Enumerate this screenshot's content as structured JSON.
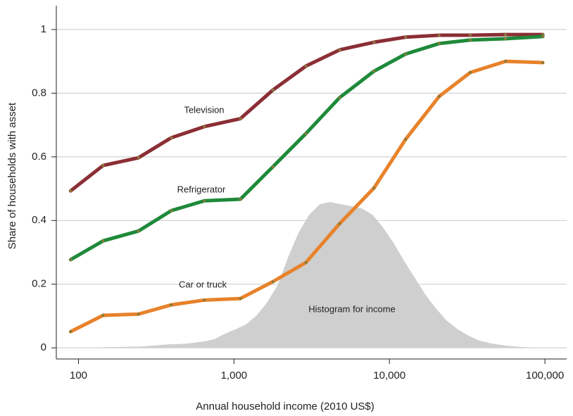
{
  "chart_data": {
    "type": "line",
    "xlabel": "Annual household income (2010 US$)",
    "ylabel": "Share of households with asset",
    "xscale": "log",
    "xlim": [
      72,
      138000
    ],
    "ylim": [
      -0.035,
      1.075
    ],
    "xticks": [
      100,
      {
        "value": 1000,
        "label": "1,000"
      },
      {
        "value": 10000,
        "label": "10,000"
      },
      {
        "value": 100000,
        "label": "100,000"
      }
    ],
    "yticks": [
      0,
      0.2,
      0.4,
      0.6,
      0.8,
      1
    ],
    "grid": true,
    "x": [
      89,
      144,
      243,
      395,
      645,
      1100,
      1780,
      2900,
      4780,
      7950,
      12700,
      20900,
      33100,
      55800,
      96900
    ],
    "series": [
      {
        "name": "Television",
        "color": "#8b2e35",
        "values": [
          0.493,
          0.573,
          0.597,
          0.66,
          0.695,
          0.72,
          0.81,
          0.885,
          0.936,
          0.96,
          0.976,
          0.982,
          0.982,
          0.984,
          0.984
        ]
      },
      {
        "name": "Refrigerator",
        "color": "#1e8a3a",
        "values": [
          0.277,
          0.336,
          0.367,
          0.431,
          0.462,
          0.467,
          0.569,
          0.673,
          0.786,
          0.869,
          0.923,
          0.956,
          0.967,
          0.971,
          0.978
        ]
      },
      {
        "name": "Car or truck",
        "color": "#e8822a",
        "values": [
          0.051,
          0.102,
          0.106,
          0.135,
          0.15,
          0.155,
          0.208,
          0.268,
          0.39,
          0.502,
          0.655,
          0.79,
          0.865,
          0.9,
          0.896
        ]
      }
    ],
    "histogram": {
      "name": "Histogram for income",
      "color": "#cfcfcf",
      "x": [
        75.5,
        149,
        250,
        379,
        492,
        638,
        746,
        873,
        1020,
        1190,
        1400,
        1630,
        1910,
        2230,
        2610,
        3050,
        3560,
        4170,
        4870,
        5700,
        6660,
        7790,
        9100,
        10600,
        12400,
        14600,
        17000,
        19900,
        23300,
        27200,
        31800,
        37200,
        45800,
        56400,
        73100,
        117000
      ],
      "values": [
        0,
        0.002,
        0.004,
        0.011,
        0.013,
        0.02,
        0.027,
        0.044,
        0.058,
        0.073,
        0.102,
        0.142,
        0.197,
        0.285,
        0.363,
        0.418,
        0.451,
        0.458,
        0.451,
        0.445,
        0.438,
        0.418,
        0.378,
        0.33,
        0.274,
        0.219,
        0.168,
        0.124,
        0.086,
        0.06,
        0.04,
        0.024,
        0.013,
        0.007,
        0.002,
        0
      ]
    }
  }
}
